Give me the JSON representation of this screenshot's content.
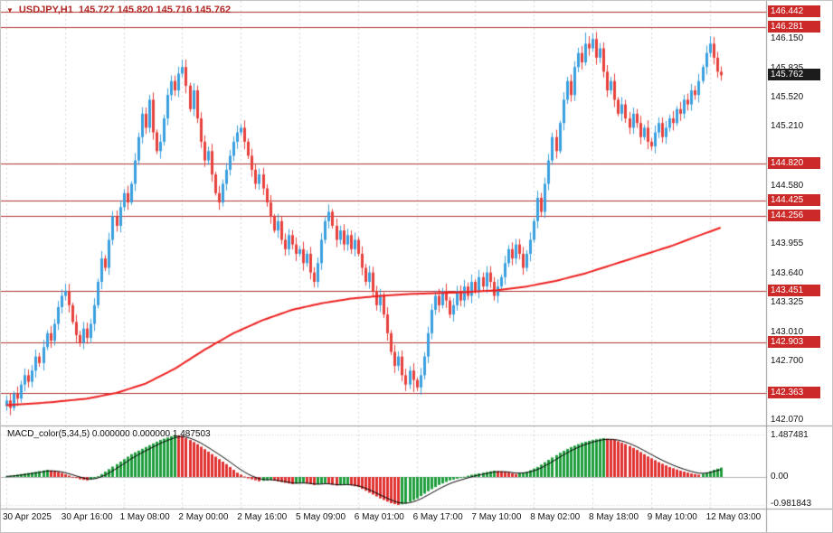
{
  "title": {
    "symbol_period": "USDJPY,H1",
    "ohlc": "145.727 145.820 145.716 145.762"
  },
  "icons": {
    "title_marker": "▼"
  },
  "colors": {
    "bull": "#3a9fde",
    "bear": "#e8403c",
    "sr_line": "#b03230",
    "ma_line": "#ee1f1f",
    "badge_red": "#cc2a28",
    "badge_black": "#1c1c1c",
    "macd_up": "#1f9e3d",
    "macd_down": "#e03030",
    "grid": "#d9d9d9",
    "separator": "#9a9a9a",
    "signal_line": "#000000",
    "title_text": "#b22a26"
  },
  "price_axis": {
    "ticks": [
      "146.150",
      "145.835",
      "145.520",
      "145.210",
      "144.580",
      "143.955",
      "143.640",
      "143.325",
      "143.010",
      "142.700",
      "142.070"
    ],
    "current_price": "145.762"
  },
  "time_axis": {
    "labels": [
      "30 Apr 2025",
      "30 Apr 16:00",
      "1 May 08:00",
      "2 May 00:00",
      "2 May 16:00",
      "5 May 09:00",
      "6 May 01:00",
      "6 May 17:00",
      "7 May 10:00",
      "8 May 02:00",
      "8 May 18:00",
      "9 May 10:00",
      "12 May 03:00"
    ]
  },
  "macd": {
    "label": "MACD_color(5,34,5) 0.000000 0.000000 1.487503",
    "axis": {
      "max": "1.487481",
      "zero": "0.00",
      "min": "-0.981843"
    }
  },
  "chart_data": [
    {
      "type": "candlestick",
      "symbol": "USDJPY",
      "timeframe": "H1",
      "title": "USDJPY,H1",
      "ohlc_current": {
        "open": 145.727,
        "high": 145.82,
        "low": 145.716,
        "close": 145.762
      },
      "ylim": [
        142.07,
        146.442
      ],
      "x_tick_labels": [
        "30 Apr 2025",
        "30 Apr 16:00",
        "1 May 08:00",
        "2 May 00:00",
        "2 May 16:00",
        "5 May 09:00",
        "6 May 01:00",
        "6 May 17:00",
        "7 May 10:00",
        "8 May 02:00",
        "8 May 18:00",
        "9 May 10:00",
        "12 May 03:00"
      ],
      "bars_per_x_tick": 16,
      "sr_levels": [
        "146.442",
        "146.281",
        "144.820",
        "144.425",
        "144.256",
        "143.451",
        "142.903",
        "142.363"
      ],
      "open_first": 142.22,
      "closes": [
        142.28,
        142.2,
        142.35,
        142.3,
        142.45,
        142.55,
        142.48,
        142.6,
        142.75,
        142.68,
        142.85,
        143.0,
        142.92,
        143.1,
        143.28,
        143.4,
        143.45,
        143.3,
        143.12,
        142.98,
        142.9,
        143.05,
        142.95,
        143.1,
        143.3,
        143.55,
        143.8,
        143.7,
        144.0,
        144.25,
        144.15,
        144.35,
        144.5,
        144.4,
        144.6,
        144.85,
        145.1,
        145.35,
        145.2,
        145.5,
        145.15,
        144.95,
        145.05,
        145.3,
        145.55,
        145.7,
        145.6,
        145.78,
        145.85,
        145.65,
        145.4,
        145.6,
        145.3,
        145.05,
        144.85,
        144.95,
        144.7,
        144.5,
        144.4,
        144.6,
        144.75,
        144.9,
        145.05,
        145.15,
        145.2,
        145.05,
        144.9,
        144.75,
        144.6,
        144.7,
        144.55,
        144.4,
        144.25,
        144.1,
        144.2,
        144.0,
        143.9,
        144.05,
        143.95,
        143.85,
        143.9,
        143.75,
        143.85,
        143.65,
        143.55,
        143.75,
        144.0,
        144.2,
        144.3,
        144.15,
        144.0,
        144.1,
        143.95,
        144.05,
        143.9,
        144.0,
        143.85,
        143.7,
        143.55,
        143.65,
        143.45,
        143.3,
        143.4,
        143.2,
        143.0,
        142.8,
        142.65,
        142.75,
        142.55,
        142.45,
        142.6,
        142.5,
        142.42,
        142.55,
        142.75,
        143.0,
        143.25,
        143.4,
        143.3,
        143.45,
        143.35,
        143.2,
        143.3,
        143.45,
        143.35,
        143.5,
        143.4,
        143.55,
        143.45,
        143.6,
        143.5,
        143.65,
        143.55,
        143.4,
        143.5,
        143.6,
        143.75,
        143.9,
        143.8,
        143.95,
        143.85,
        143.7,
        143.85,
        144.0,
        144.2,
        144.45,
        144.3,
        144.6,
        144.85,
        145.1,
        144.95,
        145.25,
        145.5,
        145.7,
        145.55,
        145.85,
        146.0,
        145.9,
        146.1,
        146.05,
        146.15,
        145.95,
        146.05,
        145.8,
        145.6,
        145.7,
        145.5,
        145.35,
        145.45,
        145.3,
        145.2,
        145.35,
        145.25,
        145.1,
        145.2,
        145.05,
        145.0,
        145.15,
        145.25,
        145.1,
        145.2,
        145.3,
        145.25,
        145.4,
        145.35,
        145.5,
        145.45,
        145.6,
        145.55,
        145.7,
        145.85,
        146.0,
        146.1,
        145.95,
        145.8,
        145.762
      ],
      "wick_overrides": {
        "16": {
          "high": 143.53
        },
        "48": {
          "high": 145.93
        },
        "111": {
          "low": 142.37
        },
        "112": {
          "low": 142.38
        },
        "158": {
          "high": 146.22
        },
        "160": {
          "high": 146.21
        },
        "192": {
          "high": 146.18
        }
      },
      "ma_points": [
        [
          0,
          142.23
        ],
        [
          12,
          142.26
        ],
        [
          22,
          142.3
        ],
        [
          30,
          142.36
        ],
        [
          38,
          142.46
        ],
        [
          46,
          142.62
        ],
        [
          54,
          142.82
        ],
        [
          62,
          143.0
        ],
        [
          70,
          143.14
        ],
        [
          78,
          143.25
        ],
        [
          86,
          143.32
        ],
        [
          94,
          143.37
        ],
        [
          102,
          143.4
        ],
        [
          110,
          143.42
        ],
        [
          118,
          143.43
        ],
        [
          126,
          143.44
        ],
        [
          134,
          143.46
        ],
        [
          142,
          143.5
        ],
        [
          150,
          143.56
        ],
        [
          158,
          143.64
        ],
        [
          166,
          143.74
        ],
        [
          174,
          143.84
        ],
        [
          182,
          143.94
        ],
        [
          188,
          144.03
        ],
        [
          195,
          144.13
        ]
      ]
    },
    {
      "type": "bar",
      "name": "MACD_color(5,34,5)",
      "ylim": [
        -0.981843,
        1.487481
      ],
      "zero_label": "0.00",
      "points": [
        [
          0,
          0.02
        ],
        [
          4,
          0.1
        ],
        [
          8,
          0.18
        ],
        [
          11,
          0.25
        ],
        [
          14,
          0.18
        ],
        [
          17,
          0.05
        ],
        [
          20,
          -0.08
        ],
        [
          22,
          -0.12
        ],
        [
          24,
          -0.05
        ],
        [
          26,
          0.1
        ],
        [
          30,
          0.45
        ],
        [
          34,
          0.8
        ],
        [
          38,
          1.05
        ],
        [
          42,
          1.3
        ],
        [
          46,
          1.47
        ],
        [
          48,
          1.44
        ],
        [
          52,
          1.15
        ],
        [
          56,
          0.8
        ],
        [
          60,
          0.45
        ],
        [
          63,
          0.15
        ],
        [
          66,
          -0.05
        ],
        [
          69,
          -0.15
        ],
        [
          72,
          -0.1
        ],
        [
          75,
          -0.18
        ],
        [
          78,
          -0.25
        ],
        [
          81,
          -0.2
        ],
        [
          84,
          -0.28
        ],
        [
          87,
          -0.22
        ],
        [
          90,
          -0.3
        ],
        [
          93,
          -0.26
        ],
        [
          96,
          -0.35
        ],
        [
          99,
          -0.55
        ],
        [
          102,
          -0.75
        ],
        [
          105,
          -0.92
        ],
        [
          107,
          -0.98
        ],
        [
          109,
          -0.93
        ],
        [
          112,
          -0.75
        ],
        [
          115,
          -0.5
        ],
        [
          118,
          -0.28
        ],
        [
          121,
          -0.12
        ],
        [
          124,
          -0.03
        ],
        [
          127,
          0.08
        ],
        [
          130,
          0.15
        ],
        [
          133,
          0.22
        ],
        [
          136,
          0.18
        ],
        [
          139,
          0.1
        ],
        [
          142,
          0.18
        ],
        [
          145,
          0.35
        ],
        [
          148,
          0.6
        ],
        [
          151,
          0.85
        ],
        [
          154,
          1.05
        ],
        [
          157,
          1.2
        ],
        [
          160,
          1.3
        ],
        [
          163,
          1.36
        ],
        [
          166,
          1.3
        ],
        [
          169,
          1.15
        ],
        [
          172,
          0.95
        ],
        [
          175,
          0.72
        ],
        [
          178,
          0.52
        ],
        [
          181,
          0.35
        ],
        [
          184,
          0.22
        ],
        [
          187,
          0.12
        ],
        [
          189,
          0.08
        ],
        [
          191,
          0.15
        ],
        [
          193,
          0.25
        ],
        [
          195,
          0.33
        ]
      ],
      "signal_smoothing": 5
    }
  ]
}
